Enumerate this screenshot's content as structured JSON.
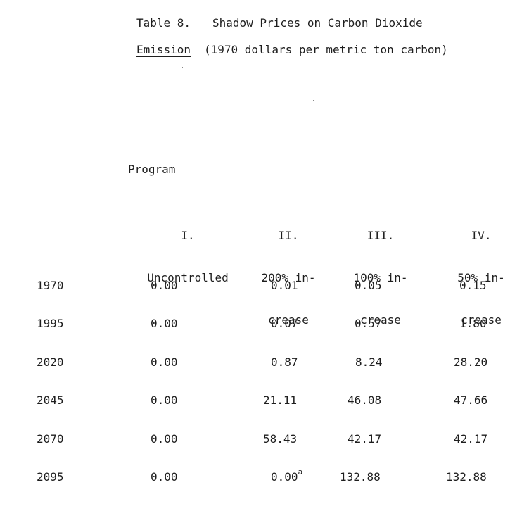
{
  "title": {
    "label": "Table 8.",
    "underlined_1": "Shadow Prices on Carbon Dioxide",
    "underlined_2": "Emission",
    "rest_2": "(1970 dollars per metric ton carbon)"
  },
  "program_label": "Program",
  "columns": [
    {
      "numeral": "I.",
      "line1": "Uncontrolled",
      "line2": ""
    },
    {
      "numeral": "II.",
      "line1": "200% in-",
      "line2": "crease"
    },
    {
      "numeral": "III.",
      "line1": "100% in-",
      "line2": "crease"
    },
    {
      "numeral": "IV.",
      "line1": "50% in-",
      "line2": "crease"
    }
  ],
  "rows": [
    {
      "year": "1970",
      "values": [
        "0.00",
        "0.01",
        "0.05",
        "0.15"
      ]
    },
    {
      "year": "1995",
      "values": [
        "0.00",
        "0.07",
        "0.57",
        "1.80"
      ]
    },
    {
      "year": "2020",
      "values": [
        "0.00",
        "0.87",
        "8.24",
        "28.20"
      ]
    },
    {
      "year": "2045",
      "values": [
        "0.00",
        "21.11",
        "46.08",
        "47.66"
      ]
    },
    {
      "year": "2070",
      "values": [
        "0.00",
        "58.43",
        "42.17",
        "42.17"
      ]
    },
    {
      "year": "2095",
      "values": [
        "0.00",
        "0.00",
        "132.88",
        "132.88"
      ]
    }
  ],
  "footnote_mark": "a"
}
